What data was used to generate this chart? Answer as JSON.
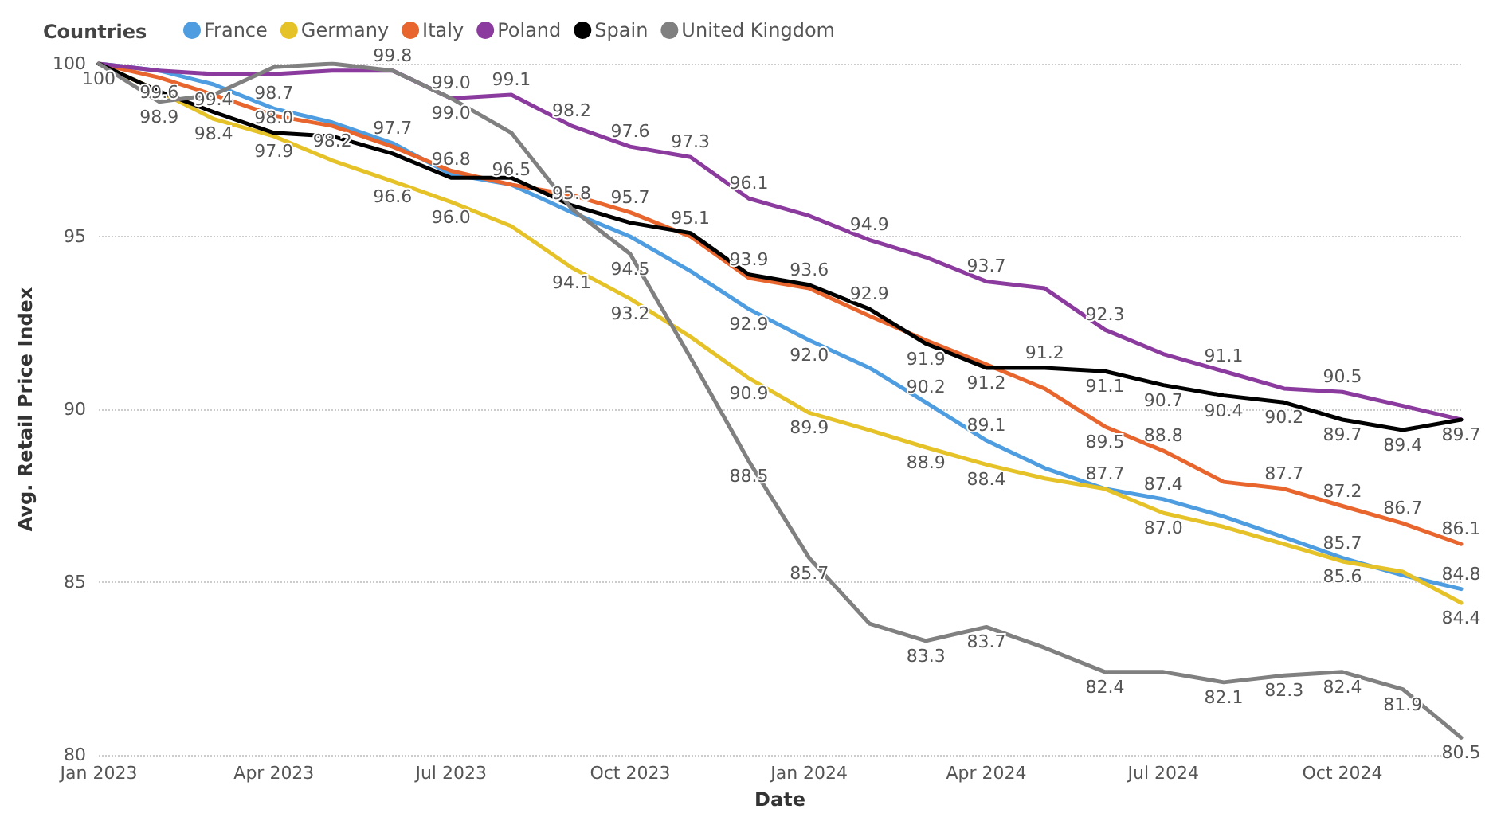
{
  "chart_data": {
    "type": "line",
    "xlabel": "Date",
    "ylabel": "Avg. Retail Price Index",
    "legend_title": "Countries",
    "legend": "top left",
    "grid": "y",
    "marker": "none",
    "line_style": "solid",
    "x": [
      "2023-01",
      "2023-02",
      "2023-03",
      "2023-04",
      "2023-05",
      "2023-06",
      "2023-07",
      "2023-08",
      "2023-09",
      "2023-10",
      "2023-11",
      "2023-12",
      "2024-01",
      "2024-02",
      "2024-03",
      "2024-04",
      "2024-05",
      "2024-06",
      "2024-07",
      "2024-08",
      "2024-09",
      "2024-10",
      "2024-11",
      "2024-12"
    ],
    "xlim": [
      "2023-01",
      "2024-12"
    ],
    "xticks": [
      {
        "value": "2023-01",
        "label": "Jan 2023"
      },
      {
        "value": "2023-04",
        "label": "Apr 2023"
      },
      {
        "value": "2023-07",
        "label": "Jul 2023"
      },
      {
        "value": "2023-10",
        "label": "Oct 2023"
      },
      {
        "value": "2024-01",
        "label": "Jan 2024"
      },
      {
        "value": "2024-04",
        "label": "Apr 2024"
      },
      {
        "value": "2024-07",
        "label": "Jul 2024"
      },
      {
        "value": "2024-10",
        "label": "Oct 2024"
      }
    ],
    "ylim": [
      80,
      100
    ],
    "yticks": [
      80,
      85,
      90,
      95,
      100
    ],
    "series": [
      {
        "name": "France",
        "color": "#4e9de0",
        "values": [
          100,
          99.8,
          99.4,
          98.7,
          98.3,
          97.7,
          96.8,
          96.5,
          95.7,
          95.0,
          94.0,
          92.9,
          92.0,
          91.2,
          90.2,
          89.1,
          88.3,
          87.7,
          87.4,
          86.9,
          86.3,
          85.7,
          85.2,
          84.8
        ],
        "value_labels": [
          null,
          null,
          "99.4",
          "98.7",
          null,
          "97.7",
          "96.8",
          "96.5",
          null,
          null,
          null,
          "92.9",
          "92.0",
          null,
          "90.2",
          "89.1",
          null,
          "87.7",
          "87.4",
          null,
          null,
          "85.7",
          null,
          "84.8"
        ]
      },
      {
        "name": "Germany",
        "color": "#e6c229",
        "values": [
          100,
          99.2,
          98.4,
          97.9,
          97.2,
          96.6,
          96.0,
          95.3,
          94.1,
          93.2,
          92.1,
          90.9,
          89.9,
          89.4,
          88.9,
          88.4,
          88.0,
          87.7,
          87.0,
          86.6,
          86.1,
          85.6,
          85.3,
          84.4
        ],
        "value_labels": [
          null,
          null,
          "98.4",
          "97.9",
          null,
          "96.6",
          "96.0",
          null,
          "94.1",
          "93.2",
          null,
          "90.9",
          "89.9",
          null,
          "88.9",
          "88.4",
          null,
          null,
          "87.0",
          null,
          null,
          "85.6",
          null,
          "84.4"
        ]
      },
      {
        "name": "Italy",
        "color": "#e8662e",
        "values": [
          100,
          99.6,
          99.1,
          98.5,
          98.2,
          97.6,
          96.9,
          96.5,
          96.2,
          95.7,
          95.0,
          93.8,
          93.5,
          92.7,
          92.0,
          91.3,
          90.6,
          89.5,
          88.8,
          87.9,
          87.7,
          87.2,
          86.7,
          86.1
        ],
        "value_labels": [
          null,
          "99.6",
          null,
          null,
          "98.2",
          null,
          null,
          null,
          null,
          "95.7",
          null,
          null,
          null,
          null,
          null,
          null,
          null,
          "89.5",
          "88.8",
          null,
          "87.7",
          "87.2",
          "86.7",
          "86.1"
        ]
      },
      {
        "name": "Poland",
        "color": "#8b3a9e",
        "values": [
          100,
          99.8,
          99.7,
          99.7,
          99.8,
          99.8,
          99.0,
          99.1,
          98.2,
          97.6,
          97.3,
          96.1,
          95.6,
          94.9,
          94.4,
          93.7,
          93.5,
          92.3,
          91.6,
          91.1,
          90.6,
          90.5,
          90.1,
          89.7
        ],
        "value_labels": [
          null,
          null,
          null,
          null,
          null,
          "99.8",
          "99.0",
          "99.1",
          "98.2",
          "97.6",
          "97.3",
          "96.1",
          null,
          "94.9",
          null,
          "93.7",
          null,
          "92.3",
          null,
          "91.1",
          null,
          "90.5",
          null,
          null
        ]
      },
      {
        "name": "Spain",
        "color": "#000000",
        "values": [
          100,
          99.2,
          98.6,
          98.0,
          97.9,
          97.4,
          96.7,
          96.7,
          95.9,
          95.4,
          95.1,
          93.9,
          93.6,
          92.9,
          91.9,
          91.2,
          91.2,
          91.1,
          90.7,
          90.4,
          90.2,
          89.7,
          89.4,
          89.7
        ],
        "value_labels": [
          "100",
          null,
          null,
          "98.0",
          null,
          null,
          null,
          null,
          null,
          null,
          "95.1",
          "93.9",
          "93.6",
          "92.9",
          "91.9",
          "91.2",
          "91.2",
          "91.1",
          "90.7",
          "90.4",
          "90.2",
          "89.7",
          "89.4",
          "89.7"
        ]
      },
      {
        "name": "United Kingdom",
        "color": "#808080",
        "values": [
          100,
          98.9,
          99.1,
          99.9,
          100,
          99.8,
          99.0,
          98.0,
          95.8,
          94.5,
          91.5,
          88.5,
          85.7,
          83.8,
          83.3,
          83.7,
          83.1,
          82.4,
          82.4,
          82.1,
          82.3,
          82.4,
          81.9,
          80.5
        ],
        "value_labels": [
          null,
          "98.9",
          null,
          null,
          null,
          null,
          "99.0",
          null,
          "95.8",
          "94.5",
          null,
          "88.5",
          "85.7",
          null,
          "83.3",
          "83.7",
          null,
          "82.4",
          null,
          "82.1",
          "82.3",
          "82.4",
          "81.9",
          "80.5"
        ]
      }
    ]
  }
}
